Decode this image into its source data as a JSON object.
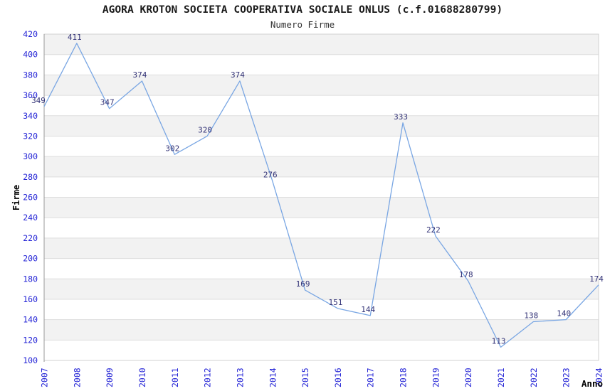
{
  "chart_data": {
    "type": "line",
    "title": "AGORA KROTON SOCIETA COOPERATIVA SOCIALE ONLUS (c.f.01688280799)",
    "subtitle": "Numero Firme",
    "xlabel": "Anno",
    "ylabel": "Firme",
    "categories": [
      "2007",
      "2008",
      "2009",
      "2010",
      "2011",
      "2012",
      "2013",
      "2014",
      "2015",
      "2016",
      "2017",
      "2018",
      "2019",
      "2020",
      "2021",
      "2022",
      "2023",
      "2024"
    ],
    "values": [
      349,
      411,
      347,
      374,
      302,
      320,
      374,
      276,
      169,
      151,
      144,
      333,
      222,
      178,
      113,
      138,
      140,
      174
    ],
    "ylim": [
      100,
      420
    ],
    "ytick_step": 20,
    "ytick_labels": [
      "100",
      "120",
      "140",
      "160",
      "180",
      "200",
      "220",
      "240",
      "260",
      "280",
      "300",
      "320",
      "340",
      "360",
      "380",
      "400",
      "420"
    ],
    "grid": "horizontal, alternating shaded bands",
    "legend": "none",
    "point_labels_visible": true,
    "colors": {
      "line": "#79A6E3",
      "point_label": "#333377",
      "tick_label": "#2424D6",
      "band_even": "#FFFFFF",
      "band_odd": "#F2F2F2",
      "gridline": "#DDDDDD",
      "plot_border": "#D0D0D0",
      "axis_line": "#999999",
      "title_text": "#1A1A1A"
    }
  }
}
